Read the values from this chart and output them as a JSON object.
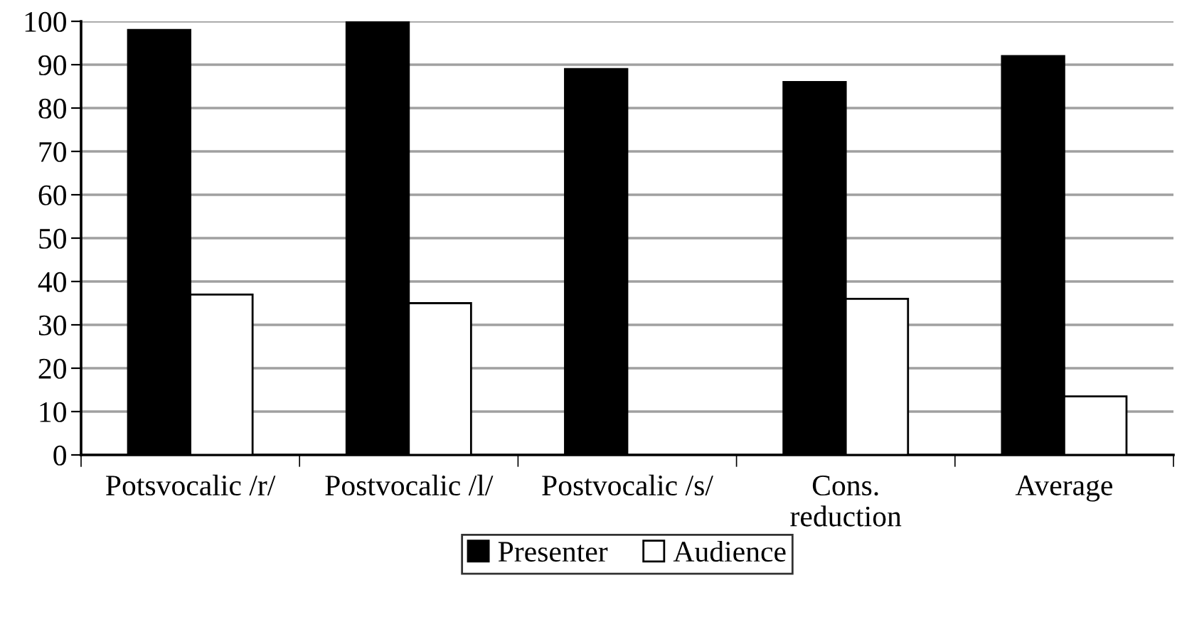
{
  "chart_data": {
    "type": "bar",
    "categories": [
      "Potsvocalic /r/",
      "Postvocalic /l/",
      "Postvocalic /s/",
      "Cons.\nreduction",
      "Average"
    ],
    "series": [
      {
        "name": "Presenter",
        "color": "#000000",
        "values": [
          98,
          100,
          89,
          86,
          92
        ]
      },
      {
        "name": "Audience",
        "color": "#ffffff",
        "values": [
          37,
          35,
          null,
          36,
          13.5
        ]
      }
    ],
    "ylim": [
      0,
      100
    ],
    "yticks": [
      0,
      10,
      20,
      30,
      40,
      50,
      60,
      70,
      80,
      90,
      100
    ],
    "grid": "y",
    "legend": "bottom"
  }
}
